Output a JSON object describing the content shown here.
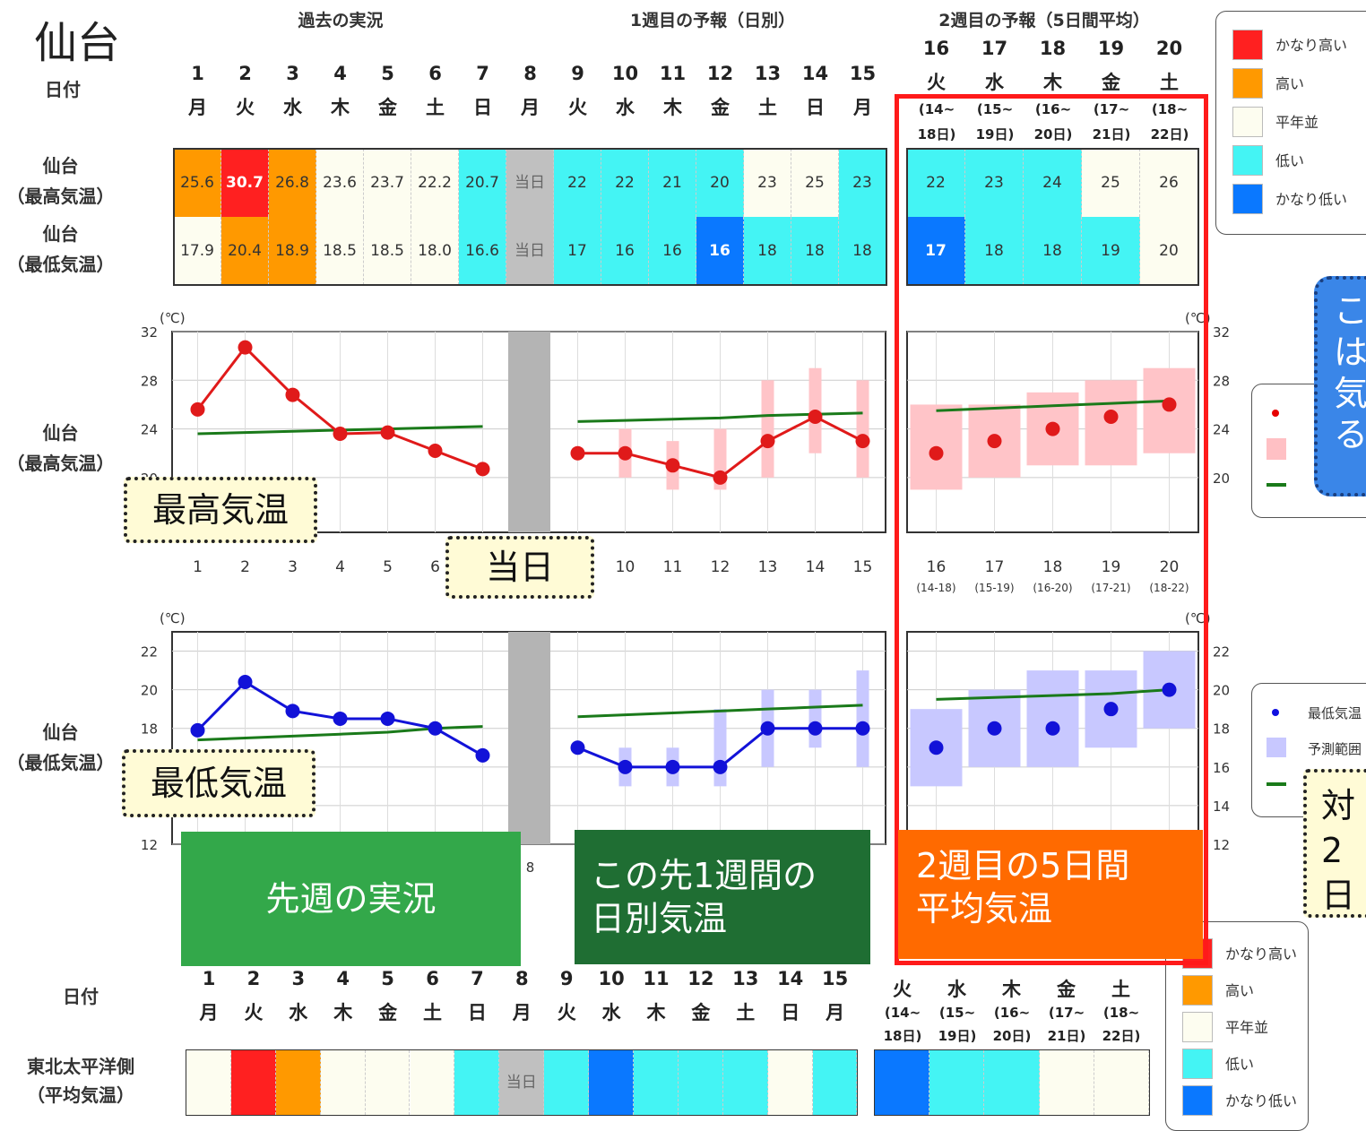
{
  "title": "仙台",
  "headers": {
    "past": "過去の実況",
    "week1": "1週目の予報（日別）",
    "week2": "2週目の予報（5日間平均）"
  },
  "row_labels": {
    "date": "日付",
    "sendai_max": [
      "仙台",
      "（最高気温）"
    ],
    "sendai_min": [
      "仙台",
      "（最低気温）"
    ],
    "tohoku": [
      "東北太平洋側",
      "（平均気温）"
    ]
  },
  "daily": {
    "days": [
      "1",
      "2",
      "3",
      "4",
      "5",
      "6",
      "7",
      "8",
      "9",
      "10",
      "11",
      "12",
      "13",
      "14",
      "15"
    ],
    "weekdays": [
      "月",
      "火",
      "水",
      "木",
      "金",
      "土",
      "日",
      "月",
      "火",
      "水",
      "木",
      "金",
      "土",
      "日",
      "月"
    ]
  },
  "week2": {
    "days": [
      "16",
      "17",
      "18",
      "19",
      "20"
    ],
    "weekdays": [
      "火",
      "水",
      "木",
      "金",
      "土"
    ],
    "ranges_top": [
      "(14~",
      "(15~",
      "(16~",
      "(17~",
      "(18~"
    ],
    "ranges_bottom": [
      "18日)",
      "19日)",
      "20日)",
      "21日)",
      "22日)"
    ],
    "ranges_axis": [
      "(14-18)",
      "(15-19)",
      "(16-20)",
      "(17-21)",
      "(18-22)"
    ]
  },
  "today_label": "当日",
  "table": {
    "max_daily": [
      "25.6",
      "30.7",
      "26.8",
      "23.6",
      "23.7",
      "22.2",
      "20.7",
      "当日",
      "22",
      "22",
      "21",
      "20",
      "23",
      "25",
      "23"
    ],
    "max_daily_class": [
      "high",
      "very-high",
      "high",
      "normal",
      "normal",
      "normal",
      "low",
      "today",
      "low",
      "low",
      "low",
      "low",
      "normal",
      "normal",
      "low"
    ],
    "max_week2": [
      "22",
      "23",
      "24",
      "25",
      "26"
    ],
    "max_week2_class": [
      "low",
      "low",
      "low",
      "normal",
      "normal"
    ],
    "min_daily": [
      "17.9",
      "20.4",
      "18.9",
      "18.5",
      "18.5",
      "18.0",
      "16.6",
      "当日",
      "17",
      "16",
      "16",
      "16",
      "18",
      "18",
      "18"
    ],
    "min_daily_class": [
      "normal",
      "high",
      "high",
      "normal",
      "normal",
      "normal",
      "low",
      "today",
      "low",
      "low",
      "low",
      "very-low",
      "low",
      "low",
      "low"
    ],
    "min_week2": [
      "17",
      "18",
      "18",
      "19",
      "20"
    ],
    "min_week2_class": [
      "very-low",
      "low",
      "low",
      "low",
      "normal"
    ],
    "tohoku_daily_class": [
      "normal",
      "very-high",
      "high",
      "normal",
      "normal",
      "normal",
      "low",
      "today",
      "low",
      "very-low",
      "low",
      "low",
      "low",
      "normal",
      "low"
    ],
    "tohoku_week2_class": [
      "very-low",
      "low",
      "low",
      "normal",
      "normal"
    ]
  },
  "legend": [
    {
      "label": "かなり高い",
      "color": "#ff2020"
    },
    {
      "label": "高い",
      "color": "#ff9900"
    },
    {
      "label": "平年並",
      "color": "#fdfdf0"
    },
    {
      "label": "低い",
      "color": "#44f4f4"
    },
    {
      "label": "かなり低い",
      "color": "#0a78ff"
    }
  ],
  "chart_legend_min": {
    "dot": "最低気温",
    "range": "予測範囲"
  },
  "colors": {
    "very-high": "#ff2020",
    "high": "#ff9900",
    "normal": "#fdfdf0",
    "low": "#44f4f4",
    "very-low": "#0a78ff",
    "today": "#c0c0c0"
  },
  "unit": "(℃)",
  "callouts": {
    "max_temp": "最高気温",
    "min_temp": "最低気温",
    "today": "当日",
    "past_week": "先週の実況",
    "next_week": [
      "この先1週間の",
      "日別気温"
    ],
    "week2": [
      "2週目の5日間",
      "平均気温"
    ],
    "blue": [
      "こ",
      "は",
      "気",
      "る"
    ],
    "yellow_right": [
      "対",
      "2日"
    ]
  },
  "chart_data": [
    {
      "type": "line",
      "title": "仙台（最高気温）",
      "ylabel": "(℃)",
      "ylim": [
        18,
        32
      ],
      "yticks": [
        20,
        24,
        28,
        32
      ],
      "x": [
        "1",
        "2",
        "3",
        "4",
        "5",
        "6",
        "7",
        "8",
        "9",
        "10",
        "11",
        "12",
        "13",
        "14",
        "15",
        "16",
        "17",
        "18",
        "19",
        "20"
      ],
      "series": [
        {
          "role": "observed_max",
          "values": [
            25.6,
            30.7,
            26.8,
            23.6,
            23.7,
            22.2,
            20.7,
            null,
            null,
            null,
            null,
            null,
            null,
            null,
            null,
            null,
            null,
            null,
            null,
            null
          ]
        },
        {
          "role": "forecast_max",
          "values": [
            null,
            null,
            null,
            null,
            null,
            null,
            null,
            null,
            22,
            22,
            21,
            20,
            23,
            25,
            23,
            22,
            23,
            24,
            25,
            26
          ]
        },
        {
          "role": "normal",
          "values": [
            23.6,
            23.7,
            23.8,
            23.9,
            24.0,
            24.1,
            24.2,
            null,
            24.6,
            24.7,
            24.8,
            24.9,
            25.1,
            25.2,
            25.3,
            25.5,
            25.7,
            25.9,
            26.1,
            26.3
          ]
        },
        {
          "role": "range_low",
          "values": [
            null,
            null,
            null,
            null,
            null,
            null,
            null,
            null,
            null,
            20,
            19,
            19,
            20,
            22,
            20,
            19,
            20,
            21,
            21,
            22
          ]
        },
        {
          "role": "range_high",
          "values": [
            null,
            null,
            null,
            null,
            null,
            null,
            null,
            null,
            null,
            24,
            23,
            24,
            28,
            29,
            28,
            26,
            26,
            27,
            28,
            29
          ]
        }
      ]
    },
    {
      "type": "line",
      "title": "仙台（最低気温）",
      "ylabel": "(℃)",
      "ylim": [
        12,
        23
      ],
      "yticks": [
        12,
        14,
        16,
        18,
        20,
        22
      ],
      "x": [
        "1",
        "2",
        "3",
        "4",
        "5",
        "6",
        "7",
        "8",
        "9",
        "10",
        "11",
        "12",
        "13",
        "14",
        "15",
        "16",
        "17",
        "18",
        "19",
        "20"
      ],
      "series": [
        {
          "role": "observed_min",
          "values": [
            17.9,
            20.4,
            18.9,
            18.5,
            18.5,
            18.0,
            16.6,
            null,
            null,
            null,
            null,
            null,
            null,
            null,
            null,
            null,
            null,
            null,
            null,
            null
          ]
        },
        {
          "role": "forecast_min",
          "values": [
            null,
            null,
            null,
            null,
            null,
            null,
            null,
            null,
            17,
            16,
            16,
            16,
            18,
            18,
            18,
            17,
            18,
            18,
            19,
            20
          ]
        },
        {
          "role": "normal",
          "values": [
            17.4,
            17.5,
            17.6,
            17.7,
            17.8,
            18.0,
            18.1,
            null,
            18.6,
            18.7,
            18.8,
            18.9,
            19.0,
            19.1,
            19.2,
            19.5,
            19.6,
            19.7,
            19.8,
            20.0
          ]
        },
        {
          "role": "range_low",
          "values": [
            null,
            null,
            null,
            null,
            null,
            null,
            null,
            null,
            null,
            15,
            15,
            15,
            16,
            17,
            16,
            15,
            16,
            16,
            17,
            18
          ]
        },
        {
          "role": "range_high",
          "values": [
            null,
            null,
            null,
            null,
            null,
            null,
            null,
            null,
            null,
            17,
            17,
            19,
            20,
            20,
            21,
            19,
            20,
            21,
            21,
            22
          ]
        }
      ]
    }
  ]
}
